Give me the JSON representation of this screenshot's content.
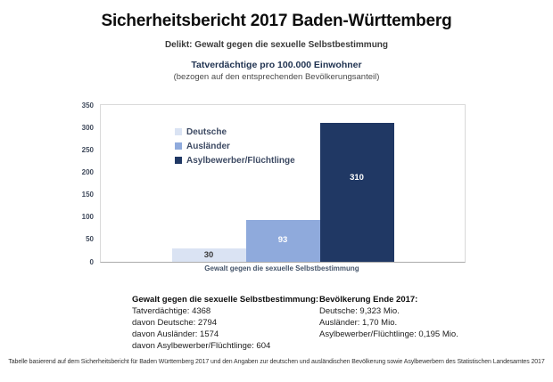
{
  "page": {
    "title": "Sicherheitsbericht 2017 Baden-Württemberg",
    "subtitle": "Delikt: Gewalt gegen die sexuelle Selbstbestimmung"
  },
  "chart_data": {
    "type": "bar",
    "title": "Tatverdächtige pro 100.000 Einwohner",
    "subtitle": "(bezogen auf den entsprechenden Bevölkerungsanteil)",
    "categories": [
      "Gewalt gegen die sexuelle Selbstbestimmung"
    ],
    "series": [
      {
        "name": "Deutsche",
        "values": [
          30
        ],
        "color": "#dae3f3",
        "label_color": "#3b3b3b"
      },
      {
        "name": "Ausländer",
        "values": [
          93
        ],
        "color": "#8faadc",
        "label_color": "#ffffff"
      },
      {
        "name": "Asylbewerber/Flüchtlinge",
        "values": [
          310
        ],
        "color": "#203864",
        "label_color": "#ffffff"
      }
    ],
    "xlabel": "Gewalt gegen die sexuelle Selbstbestimmung",
    "ylabel": "",
    "ylim": [
      0,
      350
    ],
    "y_ticks": [
      0,
      50,
      100,
      150,
      200,
      250,
      300,
      350
    ],
    "grid": false,
    "legend_position": "upper-left-inside",
    "plot_border_color": "#d9d9d9",
    "tick_text_color": "#404a5c"
  },
  "stats_left": {
    "heading": "Gewalt gegen die sexuelle Selbstbestimmung:",
    "lines": [
      "Tatverdächtige: 4368",
      "davon Deutsche: 2794",
      "davon Ausländer: 1574",
      "davon Asylbewerber/Flüchtlinge: 604"
    ]
  },
  "stats_right": {
    "heading": "Bevölkerung Ende 2017:",
    "lines": [
      "Deutsche: 9,323 Mio.",
      "Ausländer: 1,70 Mio.",
      "Asylbewerber/Flüchtlinge: 0,195 Mio."
    ]
  },
  "footer": "Tabelle basierend auf dem Sicherheitsbericht für Baden Württemberg 2017 und den Angaben zur deutschen und ausländischen Bevölkerung sowie Asylbewerbern des Statistischen Landesamtes 2017"
}
